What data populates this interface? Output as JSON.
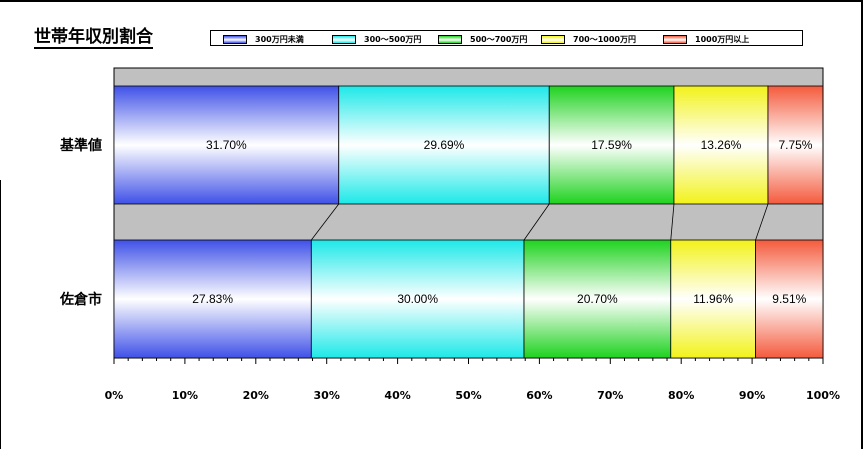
{
  "chart_data": {
    "type": "bar",
    "orientation": "horizontal",
    "stacked": "percent",
    "title": "世帯年収別割合",
    "categories": [
      "基準値",
      "佐倉市"
    ],
    "series": [
      {
        "name": "300万円未満",
        "color": "#3f51e8",
        "values": [
          31.7,
          27.83
        ]
      },
      {
        "name": "300～500万円",
        "color": "#1de8e8",
        "values": [
          29.69,
          30.0
        ]
      },
      {
        "name": "500～700万円",
        "color": "#1ed21e",
        "values": [
          17.59,
          20.7
        ]
      },
      {
        "name": "700～1000万円",
        "color": "#f2f21a",
        "values": [
          13.26,
          11.96
        ]
      },
      {
        "name": "1000万円以上",
        "color": "#f45a3c",
        "values": [
          7.75,
          9.51
        ]
      }
    ],
    "value_labels": [
      [
        "31.70%",
        "29.69%",
        "17.59%",
        "13.26%",
        "7.75%"
      ],
      [
        "27.83%",
        "30.00%",
        "20.70%",
        "11.96%",
        "9.51%"
      ]
    ],
    "xticks": [
      "0%",
      "10%",
      "20%",
      "30%",
      "40%",
      "50%",
      "60%",
      "70%",
      "80%",
      "90%",
      "100%"
    ],
    "xlim": [
      0,
      100
    ],
    "series_lines": true,
    "legend_position": "top",
    "plot_background": "#c0c0c0"
  }
}
